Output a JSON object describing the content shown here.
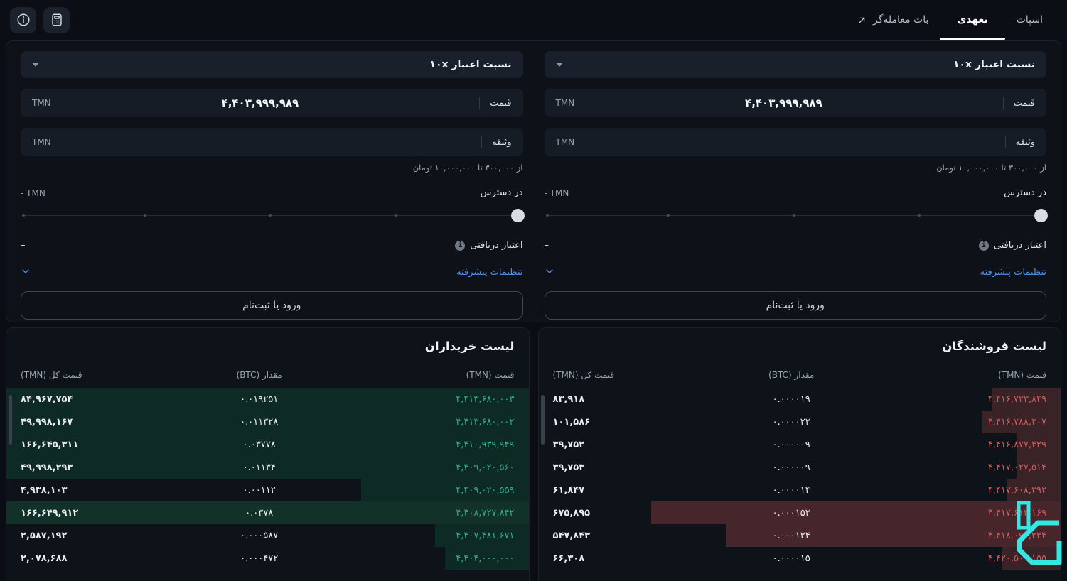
{
  "topbar": {
    "tabs": [
      {
        "label": "اسپات",
        "active": false
      },
      {
        "label": "تعهدی",
        "active": true
      },
      {
        "label": "بات معامله‌گر",
        "active": false,
        "icon": "arrow-up-right-icon"
      }
    ],
    "icon_buttons": [
      {
        "name": "calculator-icon"
      },
      {
        "name": "info-icon"
      }
    ]
  },
  "panels": [
    {
      "leverage_label": "نسبت اعتبار ۱۰x",
      "price_label": "قیمت",
      "price_value": "۴,۴۰۳,۹۹۹,۹۸۹",
      "price_unit": "TMN",
      "collateral_label": "وثیقه",
      "collateral_value": "",
      "collateral_unit": "TMN",
      "collateral_hint": "از ۳۰۰,۰۰۰ تا ۱۰,۰۰۰,۰۰۰ تومان",
      "available_label": "در دسترس",
      "available_value": "- TMN",
      "slider_percent": 0,
      "received_credit_label": "اعتبار دریافتی",
      "received_credit_value": "–",
      "advanced_settings_label": "تنظیمات پیشرفته",
      "login_button": "ورود یا ثبت‌نام"
    },
    {
      "leverage_label": "نسبت اعتبار ۱۰x",
      "price_label": "قیمت",
      "price_value": "۴,۴۰۳,۹۹۹,۹۸۹",
      "price_unit": "TMN",
      "collateral_label": "وثیقه",
      "collateral_value": "",
      "collateral_unit": "TMN",
      "collateral_hint": "از ۳۰۰,۰۰۰ تا ۱۰,۰۰۰,۰۰۰ تومان",
      "available_label": "در دسترس",
      "available_value": "- TMN",
      "slider_percent": 0,
      "received_credit_label": "اعتبار دریافتی",
      "received_credit_value": "–",
      "advanced_settings_label": "تنظیمات پیشرفته",
      "login_button": "ورود یا ثبت‌نام"
    }
  ],
  "orderbooks": {
    "sellers": {
      "title": "لیست فروشندگان",
      "columns": [
        "قیمت (TMN)",
        "مقدار (BTC)",
        "قیمت کل (TMN)"
      ],
      "accent": "#d4595c",
      "bar_color": "#3a2327",
      "bar_color_strong": "#46262b",
      "rows": [
        {
          "price": "۴,۴۱۶,۷۲۳,۸۴۹",
          "amount": "۰.۰۰۰۰۱۹",
          "total": "۸۳,۹۱۸",
          "bar_pct": 11,
          "strong": false
        },
        {
          "price": "۴,۴۱۶,۷۸۸,۳۰۷",
          "amount": "۰.۰۰۰۰۲۳",
          "total": "۱۰۱,۵۸۶",
          "bar_pct": 13,
          "strong": false
        },
        {
          "price": "۴,۴۱۶,۸۷۷,۴۲۹",
          "amount": "۰.۰۰۰۰۰۹",
          "total": "۳۹,۷۵۲",
          "bar_pct": 6,
          "strong": false
        },
        {
          "price": "۴,۴۱۷,۰۲۷,۵۱۴",
          "amount": "۰.۰۰۰۰۰۹",
          "total": "۳۹,۷۵۳",
          "bar_pct": 6,
          "strong": false
        },
        {
          "price": "۴,۴۱۷,۶۰۸,۲۹۲",
          "amount": "۰.۰۰۰۰۱۴",
          "total": "۶۱,۸۴۷",
          "bar_pct": 8,
          "strong": false
        },
        {
          "price": "۴,۴۱۷,۶۱۳,۱۶۹",
          "amount": "۰.۰۰۰۱۵۳",
          "total": "۶۷۵,۸۹۵",
          "bar_pct": 80,
          "strong": true
        },
        {
          "price": "۴,۴۱۸,۰۹۲,۲۳۴",
          "amount": "۰.۰۰۰۱۲۴",
          "total": "۵۴۷,۸۴۳",
          "bar_pct": 65,
          "strong": true
        },
        {
          "price": "۴,۴۲۰,۵۰۱,۱۵۵",
          "amount": "۰.۰۰۰۰۱۵",
          "total": "۶۶,۳۰۸",
          "bar_pct": 9,
          "strong": false
        }
      ]
    },
    "buyers": {
      "title": "لیست خریداران",
      "columns": [
        "قیمت (TMN)",
        "مقدار (BTC)",
        "قیمت کل (TMN)"
      ],
      "accent": "#2fae8e",
      "bar_color": "#0e2a25",
      "bar_color_strong": "#123129",
      "rows": [
        {
          "price": "۴,۴۱۳,۶۸۰,۰۰۳",
          "amount": "۰.۰۱۹۲۵۱",
          "total": "۸۴,۹۶۷,۷۵۴",
          "bar_pct": 100,
          "strong": false
        },
        {
          "price": "۴,۴۱۳,۶۸۰,۰۰۲",
          "amount": "۰.۰۱۱۳۲۸",
          "total": "۴۹,۹۹۸,۱۶۷",
          "bar_pct": 100,
          "strong": false
        },
        {
          "price": "۴,۴۱۰,۹۳۹,۹۴۹",
          "amount": "۰.۰۳۷۷۸",
          "total": "۱۶۶,۶۴۵,۳۱۱",
          "bar_pct": 100,
          "strong": false
        },
        {
          "price": "۴,۴۰۹,۰۲۰,۵۶۰",
          "amount": "۰.۰۱۱۳۴",
          "total": "۴۹,۹۹۸,۲۹۳",
          "bar_pct": 100,
          "strong": false
        },
        {
          "price": "۴,۴۰۹,۰۲۰,۵۵۹",
          "amount": "۰.۰۰۱۱۲",
          "total": "۴,۹۳۸,۱۰۳",
          "bar_pct": 31,
          "strong": false
        },
        {
          "price": "۴,۴۰۸,۷۲۷,۸۴۲",
          "amount": "۰.۰۳۷۸",
          "total": "۱۶۶,۶۴۹,۹۱۲",
          "bar_pct": 100,
          "strong": true
        },
        {
          "price": "۴,۴۰۷,۴۸۱,۶۷۱",
          "amount": "۰.۰۰۰۵۸۷",
          "total": "۲,۵۸۷,۱۹۲",
          "bar_pct": 16,
          "strong": false
        },
        {
          "price": "۴,۴۰۴,۰۰۰,۰۰۰",
          "amount": "۰.۰۰۰۴۷۲",
          "total": "۲,۰۷۸,۶۸۸",
          "bar_pct": 14,
          "strong": false
        }
      ]
    }
  },
  "colors": {
    "buy_green": "#2fae8e",
    "sell_red": "#d4595c",
    "link_blue": "#4f90e2",
    "watermark_cyan": "#35e6e2"
  }
}
